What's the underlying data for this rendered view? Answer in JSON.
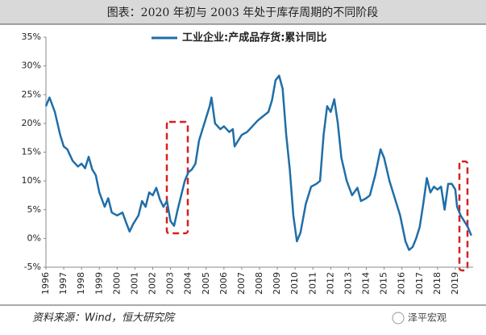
{
  "chart_data": {
    "type": "line",
    "title": "图表：2020 年初与 2003 年处于库存周期的不同阶段",
    "source": "资料来源：Wind，恒大研究院",
    "watermark": "泽平宏观",
    "x": [
      1996.0,
      1996.2,
      1996.5,
      1996.8,
      1997.0,
      1997.2,
      1997.5,
      1997.8,
      1998.0,
      1998.2,
      1998.4,
      1998.6,
      1998.8,
      1999.0,
      1999.3,
      1999.5,
      1999.7,
      2000.0,
      2000.3,
      2000.5,
      2000.7,
      2000.9,
      2001.2,
      2001.4,
      2001.6,
      2001.8,
      2002.0,
      2002.2,
      2002.4,
      2002.6,
      2002.8,
      2003.0,
      2003.2,
      2003.4,
      2003.6,
      2003.8,
      2004.0,
      2004.2,
      2004.4,
      2004.6,
      2004.8,
      2005.0,
      2005.2,
      2005.3,
      2005.5,
      2005.8,
      2006.0,
      2006.3,
      2006.5,
      2006.6,
      2006.8,
      2007.0,
      2007.3,
      2007.6,
      2007.9,
      2008.1,
      2008.3,
      2008.5,
      2008.7,
      2008.9,
      2009.1,
      2009.3,
      2009.5,
      2009.7,
      2009.9,
      2010.1,
      2010.3,
      2010.6,
      2010.9,
      2011.2,
      2011.4,
      2011.6,
      2011.8,
      2012.0,
      2012.2,
      2012.4,
      2012.6,
      2012.9,
      2013.2,
      2013.5,
      2013.7,
      2014.0,
      2014.2,
      2014.5,
      2014.8,
      2015.0,
      2015.3,
      2015.6,
      2015.9,
      2016.2,
      2016.4,
      2016.6,
      2016.8,
      2017.0,
      2017.2,
      2017.4,
      2017.6,
      2017.8,
      2018.0,
      2018.2,
      2018.4,
      2018.6,
      2018.8,
      2019.0,
      2019.1,
      2019.3,
      2019.5,
      2019.7,
      2019.9
    ],
    "series": [
      {
        "name": "工业企业:产成品存货:累计同比",
        "color": "#1f6ea8",
        "values": [
          23,
          24.5,
          22,
          18,
          16,
          15.5,
          13.5,
          12.5,
          13,
          12.2,
          14.2,
          12,
          11,
          8,
          5.5,
          7,
          4.5,
          4,
          4.5,
          2.8,
          1.2,
          2.5,
          4,
          6.5,
          5.5,
          8,
          7.5,
          8.8,
          6.8,
          5.5,
          6.5,
          3,
          2.2,
          5,
          7.5,
          10,
          11.5,
          12,
          13,
          17,
          19,
          21,
          23,
          24.5,
          20,
          19,
          19.5,
          18.5,
          19,
          16,
          17,
          18,
          18.5,
          19.5,
          20.5,
          21,
          21.5,
          22,
          24,
          27.5,
          28.3,
          26,
          18,
          12,
          4,
          -0.5,
          1,
          6,
          9,
          9.5,
          10,
          18,
          23,
          22,
          24.2,
          20,
          14,
          10,
          7.5,
          8.8,
          6.5,
          7,
          7.5,
          11,
          15.5,
          14,
          10,
          7,
          4,
          -0.5,
          -2,
          -1.5,
          0,
          2,
          6,
          10.5,
          8,
          9,
          8.5,
          9,
          5,
          9.5,
          9.5,
          8.5,
          5.5,
          4,
          3,
          2,
          0.5
        ]
      }
    ],
    "xlim": [
      1996,
      2020
    ],
    "xticks": [
      1996,
      1997,
      1998,
      1999,
      2000,
      2001,
      2002,
      2003,
      2004,
      2005,
      2006,
      2007,
      2008,
      2009,
      2010,
      2011,
      2012,
      2013,
      2014,
      2015,
      2016,
      2017,
      2018,
      2019
    ],
    "ylim": [
      -5,
      35
    ],
    "yticks": [
      {
        "value": 35,
        "label": "35%"
      },
      {
        "value": 30,
        "label": "30%"
      },
      {
        "value": 25,
        "label": "25%"
      },
      {
        "value": 20,
        "label": "20%"
      },
      {
        "value": 15,
        "label": "15%"
      },
      {
        "value": 10,
        "label": "10%"
      },
      {
        "value": 5,
        "label": "5%"
      },
      {
        "value": 0,
        "label": "0%"
      },
      {
        "value": -5,
        "label": "-5%"
      }
    ]
  }
}
